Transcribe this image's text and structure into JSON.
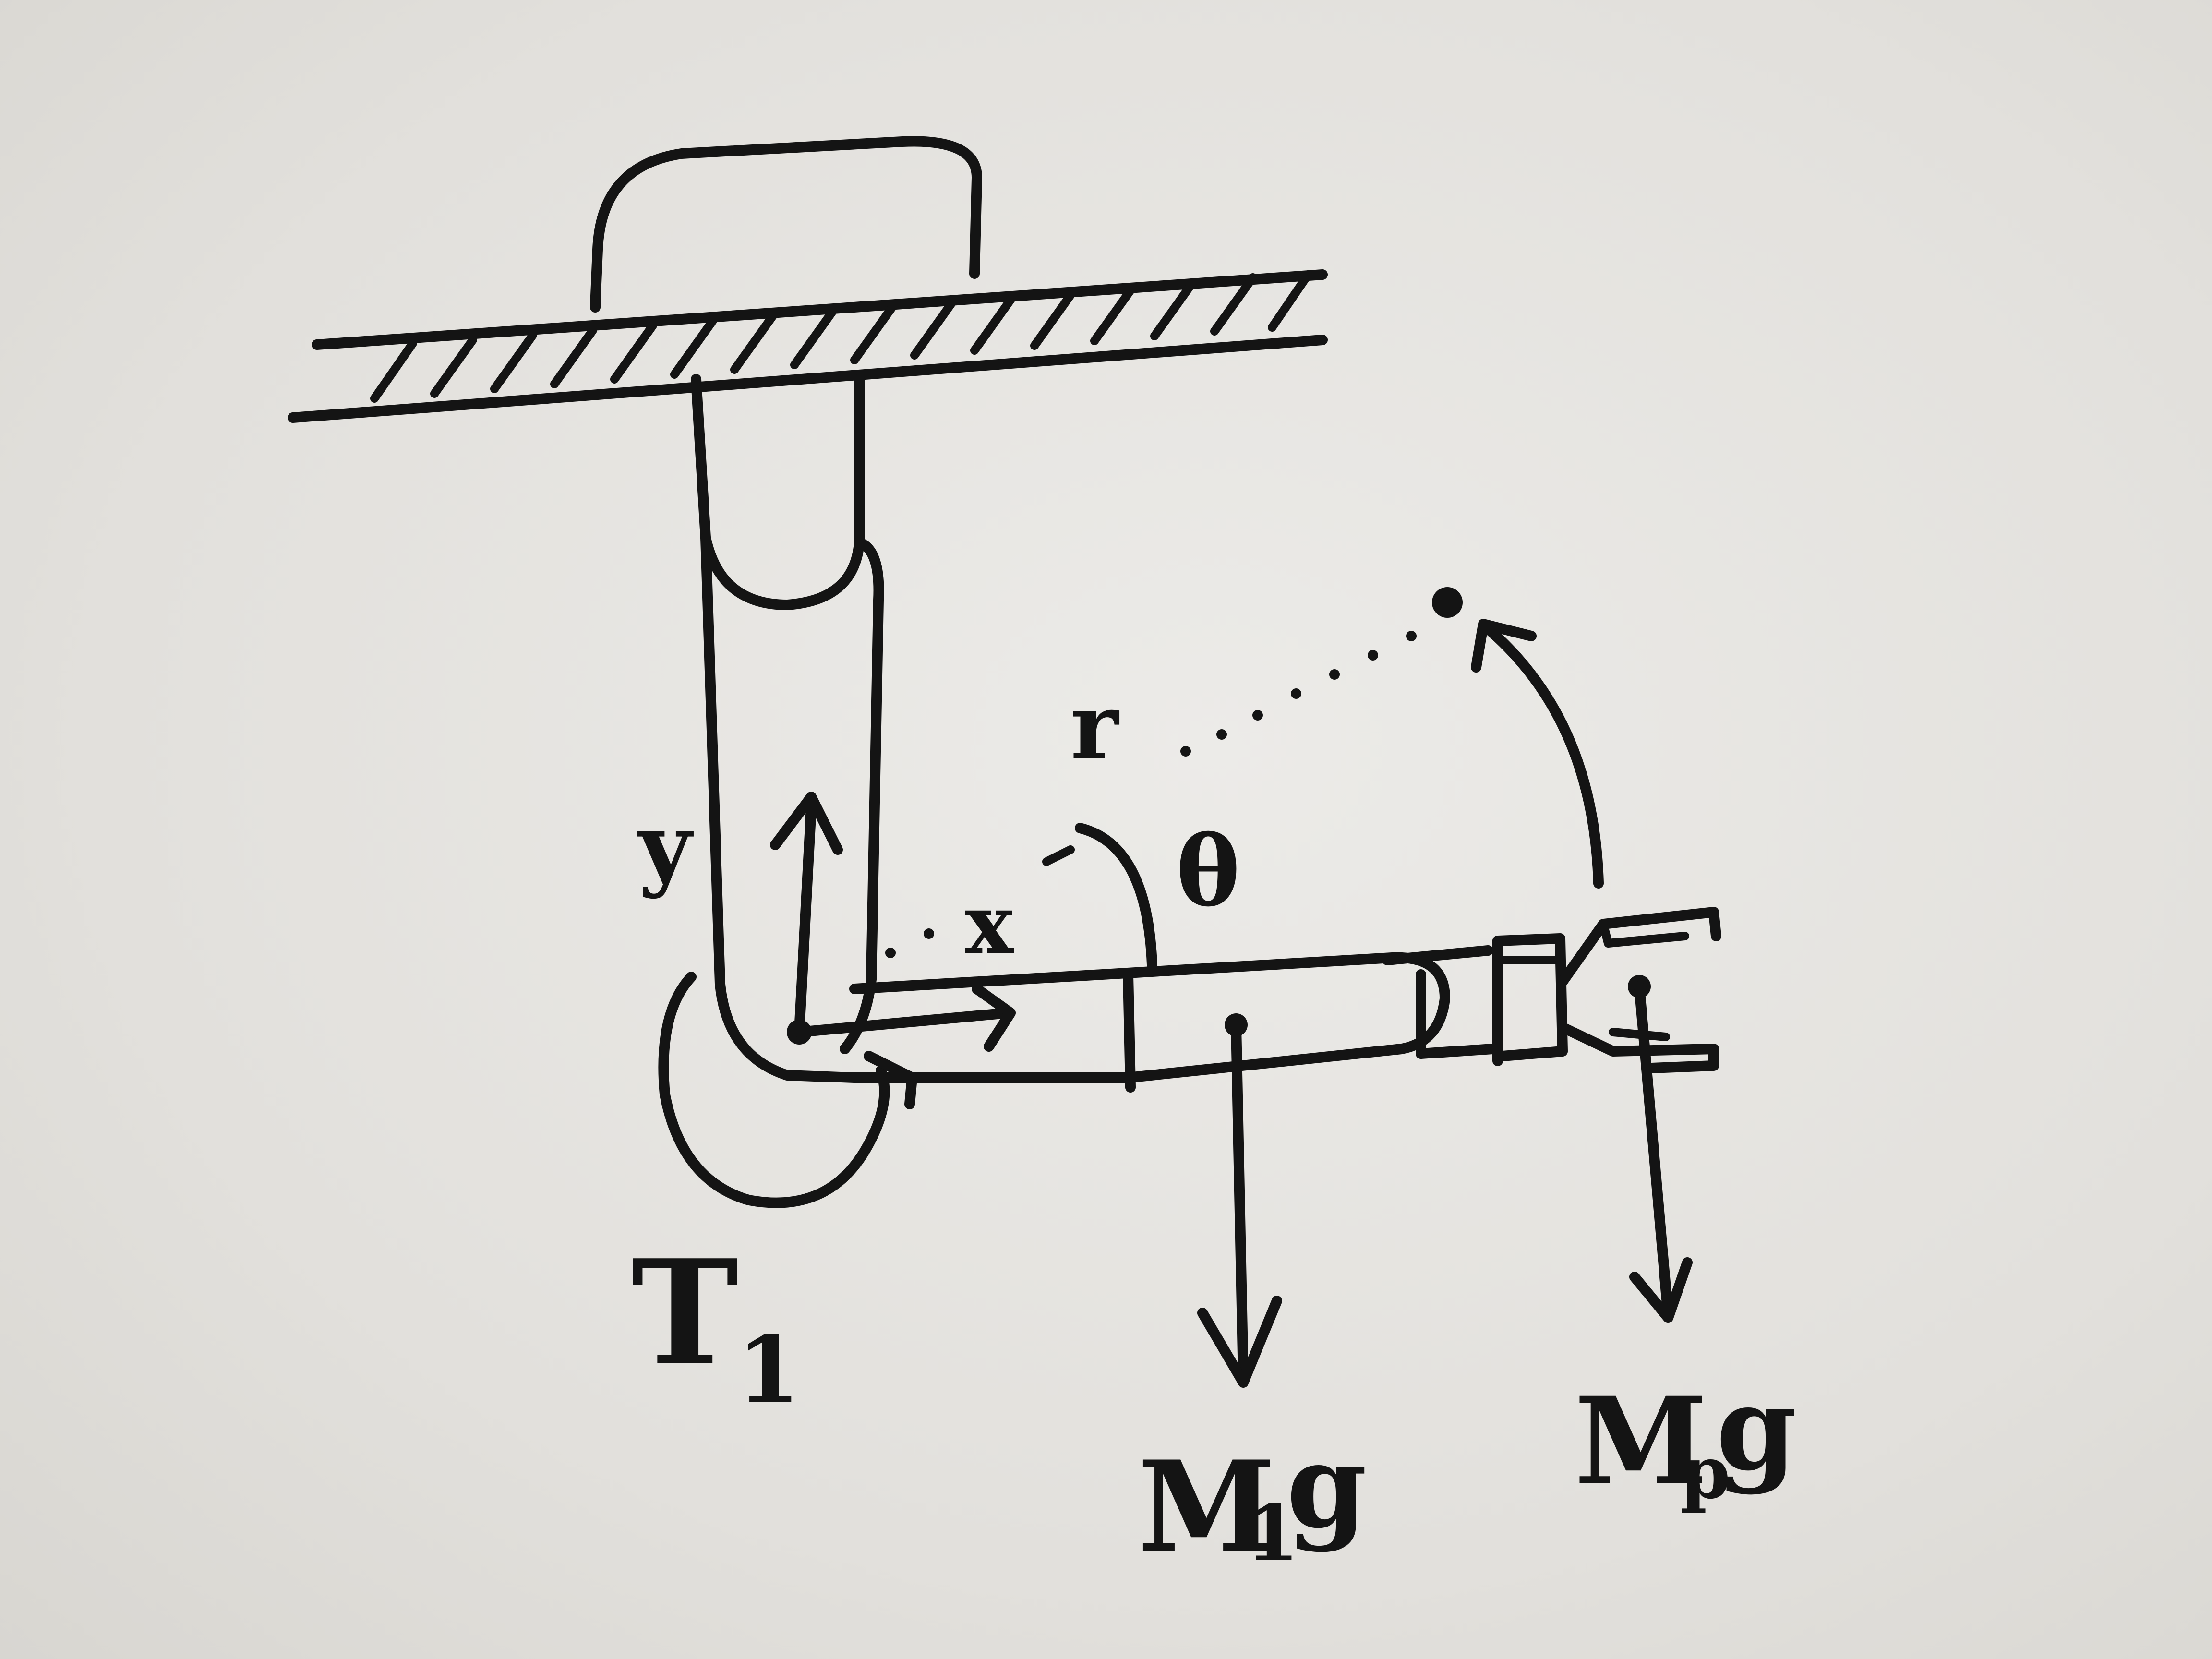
{
  "diagram": {
    "labels": {
      "torque": "T",
      "torque_sub": "1",
      "x_axis": "x",
      "y_axis": "y",
      "radius": "r",
      "angle": "θ",
      "link_weight": "M",
      "link_weight_sub": "1",
      "link_weight_g": "g",
      "payload_weight": "M",
      "payload_weight_sub": "p",
      "payload_weight_g": "g"
    }
  }
}
